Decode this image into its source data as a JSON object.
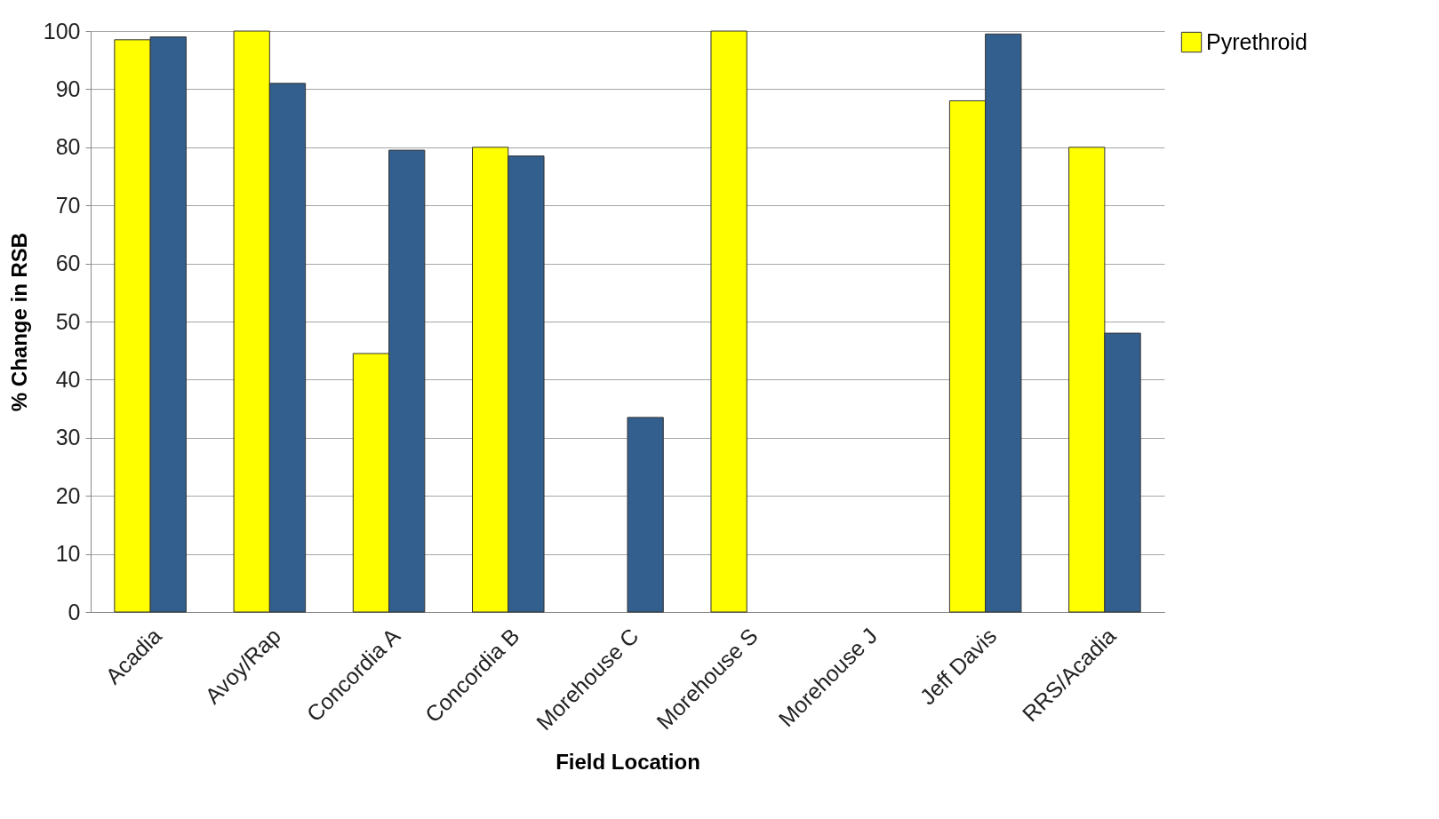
{
  "chart_data": {
    "type": "bar",
    "xlabel": "Field Location",
    "ylabel": "% Change in RSB",
    "categories": [
      "Acadia",
      "Avoy/Rap",
      "Concordia A",
      "Concordia B",
      "Morehouse C",
      "Morehouse S",
      "Morehouse J",
      "Jeff Davis",
      "RRS/Acadia"
    ],
    "series": [
      {
        "name": "Pyrethroid",
        "color": "#ffff00",
        "values": [
          98.5,
          100,
          44.5,
          80,
          null,
          100,
          null,
          88,
          80
        ]
      },
      {
        "color": "#335f8e",
        "values": [
          99,
          91,
          79.5,
          78.5,
          33.5,
          null,
          null,
          99.5,
          48
        ]
      }
    ],
    "ylim": [
      0,
      100
    ],
    "yticks": [
      0,
      10,
      20,
      30,
      40,
      50,
      60,
      70,
      80,
      90,
      100
    ],
    "grid": "y",
    "legend": "right"
  }
}
